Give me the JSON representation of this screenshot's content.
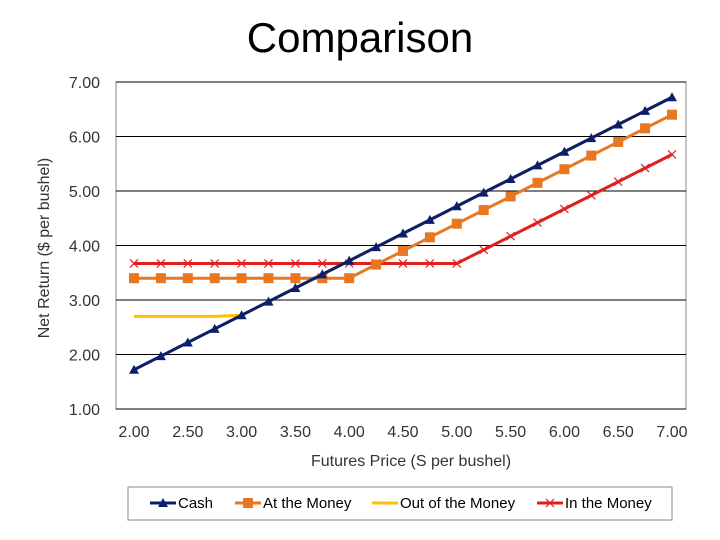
{
  "chart_data": {
    "type": "line",
    "title": "Comparison",
    "xlabel": "Futures Price (S per bushel)",
    "ylabel": "Net Return ($ per bushel)",
    "xlim": [
      2.0,
      7.0
    ],
    "ylim": [
      1.0,
      7.0
    ],
    "x_ticks": [
      "2.00",
      "2.50",
      "3.00",
      "3.50",
      "4.00",
      "4.50",
      "5.00",
      "5.50",
      "6.00",
      "6.50",
      "7.00"
    ],
    "y_ticks": [
      "1.00",
      "2.00",
      "3.00",
      "4.00",
      "5.00",
      "6.00",
      "7.00"
    ],
    "x": [
      2.0,
      2.25,
      2.5,
      2.75,
      3.0,
      3.25,
      3.5,
      3.75,
      4.0,
      4.25,
      4.5,
      4.75,
      5.0,
      5.25,
      5.5,
      5.75,
      6.0,
      6.25,
      6.5,
      6.75,
      7.0
    ],
    "grid": "horizontal",
    "legend_position": "bottom",
    "series": [
      {
        "name": "Cash",
        "color": "#0d1f6b",
        "marker": "triangle",
        "values": [
          1.72,
          1.97,
          2.22,
          2.47,
          2.72,
          2.97,
          3.22,
          3.47,
          3.72,
          3.97,
          4.22,
          4.47,
          4.72,
          4.97,
          5.22,
          5.47,
          5.72,
          5.97,
          6.22,
          6.47,
          6.72
        ]
      },
      {
        "name": "At the Money",
        "color": "#e87722",
        "marker": "square",
        "values": [
          3.4,
          3.4,
          3.4,
          3.4,
          3.4,
          3.4,
          3.4,
          3.4,
          3.4,
          3.65,
          3.9,
          4.15,
          4.4,
          4.65,
          4.9,
          5.15,
          5.4,
          5.65,
          5.9,
          6.15,
          6.4
        ]
      },
      {
        "name": "Out of the Money",
        "color": "#ffc000",
        "marker": "none",
        "values": [
          2.7,
          2.7,
          2.7,
          2.7,
          2.72,
          2.97,
          3.22,
          3.47,
          3.72,
          3.97,
          4.22,
          4.47,
          4.72,
          4.97,
          5.22,
          5.47,
          5.72,
          5.97,
          6.22,
          6.47,
          6.72
        ]
      },
      {
        "name": "In the Money",
        "color": "#e02020",
        "marker": "x",
        "values": [
          3.67,
          3.67,
          3.67,
          3.67,
          3.67,
          3.67,
          3.67,
          3.67,
          3.67,
          3.67,
          3.67,
          3.67,
          3.67,
          3.92,
          4.17,
          4.42,
          4.67,
          4.92,
          5.17,
          5.42,
          5.67
        ]
      }
    ]
  }
}
